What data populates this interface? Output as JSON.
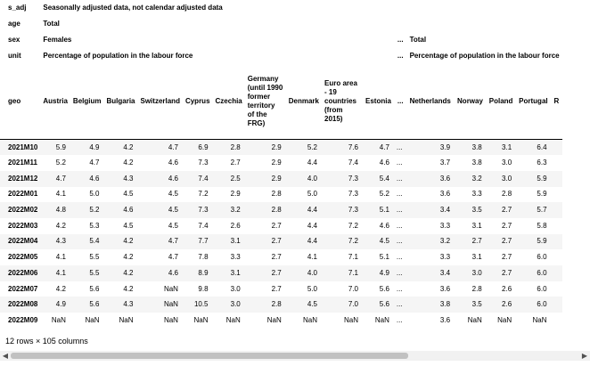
{
  "meta_rows": [
    {
      "label": "s_adj",
      "left": "Seasonally adjusted data, not calendar adjusted data",
      "right": ""
    },
    {
      "label": "age",
      "left": "Total",
      "right": ""
    },
    {
      "label": "sex",
      "left": "Females",
      "right": "Total"
    },
    {
      "label": "unit",
      "left": "Percentage of population in the labour force",
      "right": "Percentage of population in the labour force"
    }
  ],
  "ellipsis": "...",
  "index_header": "geo",
  "columns_left": [
    "Austria",
    "Belgium",
    "Bulgaria",
    "Switzerland",
    "Cyprus",
    "Czechia",
    "Germany (until 1990 former territory of the FRG)",
    "Denmark",
    "Euro area - 19 countries (from 2015)",
    "Estonia"
  ],
  "columns_right": [
    "Netherlands",
    "Norway",
    "Poland",
    "Portugal",
    "R"
  ],
  "rows": [
    {
      "index": "2021M10",
      "left": [
        "5.9",
        "4.9",
        "4.2",
        "4.7",
        "6.9",
        "2.8",
        "2.9",
        "5.2",
        "7.6",
        "4.7"
      ],
      "right": [
        "3.9",
        "3.8",
        "3.1",
        "6.4",
        ""
      ]
    },
    {
      "index": "2021M11",
      "left": [
        "5.2",
        "4.7",
        "4.2",
        "4.6",
        "7.3",
        "2.7",
        "2.9",
        "4.4",
        "7.4",
        "4.6"
      ],
      "right": [
        "3.7",
        "3.8",
        "3.0",
        "6.3",
        ""
      ]
    },
    {
      "index": "2021M12",
      "left": [
        "4.7",
        "4.6",
        "4.3",
        "4.6",
        "7.4",
        "2.5",
        "2.9",
        "4.0",
        "7.3",
        "5.4"
      ],
      "right": [
        "3.6",
        "3.2",
        "3.0",
        "5.9",
        ""
      ]
    },
    {
      "index": "2022M01",
      "left": [
        "4.1",
        "5.0",
        "4.5",
        "4.5",
        "7.2",
        "2.9",
        "2.8",
        "5.0",
        "7.3",
        "5.2"
      ],
      "right": [
        "3.6",
        "3.3",
        "2.8",
        "5.9",
        ""
      ]
    },
    {
      "index": "2022M02",
      "left": [
        "4.8",
        "5.2",
        "4.6",
        "4.5",
        "7.3",
        "3.2",
        "2.8",
        "4.4",
        "7.3",
        "5.1"
      ],
      "right": [
        "3.4",
        "3.5",
        "2.7",
        "5.7",
        ""
      ]
    },
    {
      "index": "2022M03",
      "left": [
        "4.2",
        "5.3",
        "4.5",
        "4.5",
        "7.4",
        "2.6",
        "2.7",
        "4.4",
        "7.2",
        "4.6"
      ],
      "right": [
        "3.3",
        "3.1",
        "2.7",
        "5.8",
        ""
      ]
    },
    {
      "index": "2022M04",
      "left": [
        "4.3",
        "5.4",
        "4.2",
        "4.7",
        "7.7",
        "3.1",
        "2.7",
        "4.4",
        "7.2",
        "4.5"
      ],
      "right": [
        "3.2",
        "2.7",
        "2.7",
        "5.9",
        ""
      ]
    },
    {
      "index": "2022M05",
      "left": [
        "4.1",
        "5.5",
        "4.2",
        "4.7",
        "7.8",
        "3.3",
        "2.7",
        "4.1",
        "7.1",
        "5.1"
      ],
      "right": [
        "3.3",
        "3.1",
        "2.7",
        "6.0",
        ""
      ]
    },
    {
      "index": "2022M06",
      "left": [
        "4.1",
        "5.5",
        "4.2",
        "4.6",
        "8.9",
        "3.1",
        "2.7",
        "4.0",
        "7.1",
        "4.9"
      ],
      "right": [
        "3.4",
        "3.0",
        "2.7",
        "6.0",
        ""
      ]
    },
    {
      "index": "2022M07",
      "left": [
        "4.2",
        "5.6",
        "4.2",
        "NaN",
        "9.8",
        "3.0",
        "2.7",
        "5.0",
        "7.0",
        "5.6"
      ],
      "right": [
        "3.6",
        "2.8",
        "2.6",
        "6.0",
        ""
      ]
    },
    {
      "index": "2022M08",
      "left": [
        "4.9",
        "5.6",
        "4.3",
        "NaN",
        "10.5",
        "3.0",
        "2.8",
        "4.5",
        "7.0",
        "5.6"
      ],
      "right": [
        "3.8",
        "3.5",
        "2.6",
        "6.0",
        ""
      ]
    },
    {
      "index": "2022M09",
      "left": [
        "NaN",
        "NaN",
        "NaN",
        "NaN",
        "NaN",
        "NaN",
        "NaN",
        "NaN",
        "NaN",
        "NaN"
      ],
      "right": [
        "3.6",
        "NaN",
        "NaN",
        "NaN",
        ""
      ]
    }
  ],
  "footer": "12 rows × 105 columns"
}
